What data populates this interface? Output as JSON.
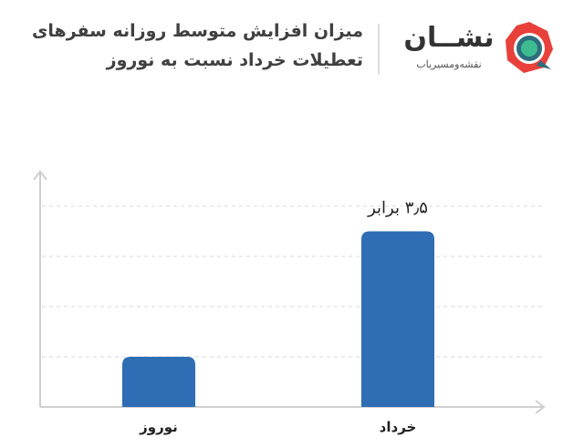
{
  "title": {
    "line1": "میزان افزایش متوسط روزانه سفرهای",
    "line2": "تعطیلات خرداد نسبت به نوروز"
  },
  "brand": {
    "name": "نشــان",
    "tagline": "نقشه‌ومسیریاب",
    "logo_icon": "neshan-logo-icon",
    "colors": {
      "outer": "#e8403a",
      "ring": "#2c6e7d",
      "center": "#3dbb91"
    }
  },
  "chart_data": {
    "type": "bar",
    "categories": [
      "نوروز",
      "خرداد"
    ],
    "values": [
      1,
      3.5
    ],
    "annotations": [
      "",
      "۳٫۵ برابر"
    ],
    "ylim": [
      0,
      5
    ],
    "grid": true,
    "bar_color": "#2f6db5",
    "axis_color": "#cfcfcf",
    "grid_color": "#d8d8d8"
  }
}
